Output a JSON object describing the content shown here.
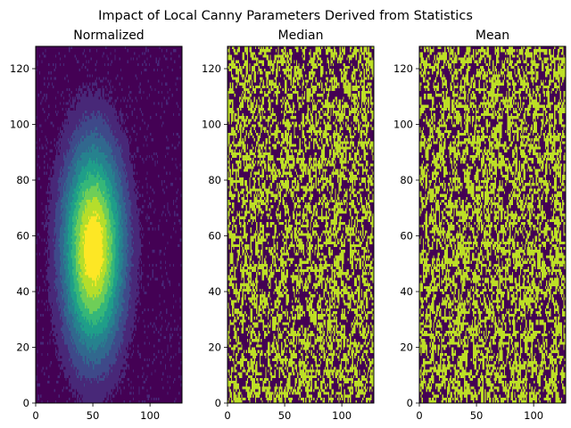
{
  "figure": {
    "suptitle": "Impact of Local Canny Parameters Derived from Statistics"
  },
  "colors": {
    "viridis": [
      "#440154",
      "#482878",
      "#3e4989",
      "#31688e",
      "#26828e",
      "#1f9e89",
      "#35b779",
      "#6ece58",
      "#b5de2b",
      "#fde725"
    ],
    "edge_low": "#440154",
    "edge_high": "#bddf26"
  },
  "chart_data": [
    {
      "type": "heatmap",
      "title": "Normalized",
      "xlabel": "",
      "ylabel": "",
      "xlim": [
        0,
        128
      ],
      "ylim": [
        0,
        128
      ],
      "xticks": [
        "0",
        "50",
        "100"
      ],
      "yticks": [
        "0",
        "20",
        "40",
        "60",
        "80",
        "100",
        "120"
      ],
      "grid": false,
      "content": "filled contour of normalized intensity, elliptical blob peaking near x=50, y=55",
      "peak": {
        "x": 50,
        "y": 55
      },
      "levels": [
        0.0,
        0.11,
        0.22,
        0.33,
        0.44,
        0.55,
        0.66,
        0.77,
        0.88,
        1.0
      ]
    },
    {
      "type": "heatmap",
      "title": "Median",
      "xlabel": "",
      "ylabel": "",
      "xlim": [
        0,
        128
      ],
      "ylim": [
        0,
        128
      ],
      "xticks": [
        "0",
        "50",
        "100"
      ],
      "yticks": [
        "0",
        "20",
        "40",
        "60",
        "80",
        "100",
        "120"
      ],
      "grid": false,
      "content": "binary edge map (Canny, median-derived thresholds)",
      "values": [
        0,
        1
      ]
    },
    {
      "type": "heatmap",
      "title": "Mean",
      "xlabel": "",
      "ylabel": "",
      "xlim": [
        0,
        128
      ],
      "ylim": [
        0,
        128
      ],
      "xticks": [
        "0",
        "50",
        "100"
      ],
      "yticks": [
        "0",
        "20",
        "40",
        "60",
        "80",
        "100",
        "120"
      ],
      "grid": false,
      "content": "binary edge map (Canny, mean-derived thresholds)",
      "values": [
        0,
        1
      ]
    }
  ]
}
